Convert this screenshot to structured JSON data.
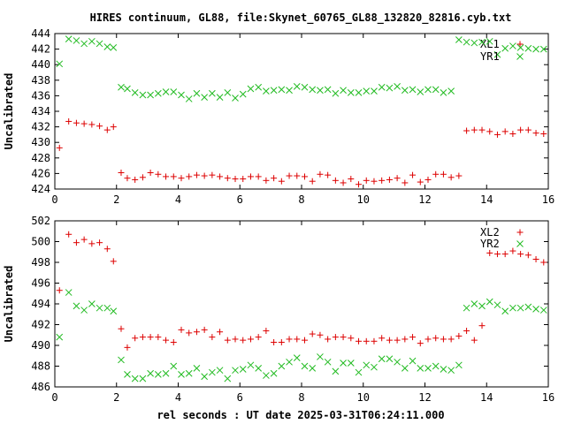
{
  "title": "HIRES continuum, GL88, file:Skynet_60765_GL88_132820_82816.cyb.txt",
  "xlabel": "rel seconds : UT date 2025-03-31T06:24:11.000",
  "colors": {
    "red": "#dd0000",
    "green": "#22bb22"
  },
  "chart_data": [
    {
      "type": "scatter",
      "ylabel": "Uncalibrated",
      "xlim": [
        0,
        16
      ],
      "ylim": [
        424,
        444
      ],
      "xticks": [
        0,
        2,
        4,
        6,
        8,
        10,
        12,
        14,
        16
      ],
      "yticks": [
        424,
        426,
        428,
        430,
        432,
        434,
        436,
        438,
        440,
        442,
        444
      ],
      "legend_position": "top-right",
      "series": [
        {
          "name": "XL1",
          "marker": "plus",
          "color": "#dd0000",
          "x": [
            0.15,
            0.45,
            0.7,
            0.95,
            1.2,
            1.45,
            1.7,
            1.9,
            2.15,
            2.35,
            2.6,
            2.85,
            3.1,
            3.35,
            3.6,
            3.85,
            4.1,
            4.35,
            4.6,
            4.85,
            5.1,
            5.35,
            5.6,
            5.85,
            6.1,
            6.35,
            6.6,
            6.85,
            7.1,
            7.35,
            7.6,
            7.85,
            8.1,
            8.35,
            8.6,
            8.85,
            9.1,
            9.35,
            9.6,
            9.85,
            10.1,
            10.35,
            10.6,
            10.85,
            11.1,
            11.35,
            11.6,
            11.85,
            12.1,
            12.35,
            12.6,
            12.85,
            13.1,
            13.35,
            13.6,
            13.85,
            14.1,
            14.35,
            14.6,
            14.85,
            15.1,
            15.35,
            15.6,
            15.85
          ],
          "values": [
            429.3,
            432.7,
            432.5,
            432.4,
            432.3,
            432.1,
            431.6,
            432.0,
            426.1,
            425.4,
            425.2,
            425.5,
            426.1,
            425.9,
            425.6,
            425.6,
            425.4,
            425.6,
            425.8,
            425.7,
            425.8,
            425.6,
            425.4,
            425.3,
            425.3,
            425.6,
            425.6,
            425.1,
            425.4,
            425.0,
            425.7,
            425.7,
            425.6,
            425.0,
            425.9,
            425.8,
            425.1,
            424.8,
            425.3,
            424.6,
            425.1,
            425.0,
            425.1,
            425.2,
            425.4,
            424.8,
            425.8,
            424.9,
            425.2,
            425.9,
            425.9,
            425.5,
            425.7,
            431.5,
            431.6,
            431.6,
            431.4,
            431.0,
            431.4,
            431.1,
            431.6,
            431.6,
            431.2,
            431.1
          ]
        },
        {
          "name": "YR1",
          "marker": "cross",
          "color": "#22bb22",
          "x": [
            0.15,
            0.45,
            0.7,
            0.95,
            1.2,
            1.45,
            1.7,
            1.9,
            2.15,
            2.35,
            2.6,
            2.85,
            3.1,
            3.35,
            3.6,
            3.85,
            4.1,
            4.35,
            4.6,
            4.85,
            5.1,
            5.35,
            5.6,
            5.85,
            6.1,
            6.35,
            6.6,
            6.85,
            7.1,
            7.35,
            7.6,
            7.85,
            8.1,
            8.35,
            8.6,
            8.85,
            9.1,
            9.35,
            9.6,
            9.85,
            10.1,
            10.35,
            10.6,
            10.85,
            11.1,
            11.35,
            11.6,
            11.85,
            12.1,
            12.35,
            12.6,
            12.85,
            13.1,
            13.35,
            13.6,
            13.85,
            14.1,
            14.35,
            14.6,
            14.85,
            15.1,
            15.35,
            15.6,
            15.85
          ],
          "values": [
            440.1,
            443.3,
            443.1,
            442.7,
            443.0,
            442.7,
            442.3,
            442.2,
            437.1,
            436.9,
            436.4,
            436.1,
            436.1,
            436.3,
            436.5,
            436.5,
            436.1,
            435.6,
            436.3,
            435.8,
            436.3,
            435.8,
            436.4,
            435.7,
            436.2,
            436.9,
            437.1,
            436.6,
            436.7,
            436.8,
            436.7,
            437.2,
            437.1,
            436.8,
            436.7,
            436.8,
            436.3,
            436.7,
            436.4,
            436.4,
            436.6,
            436.6,
            437.1,
            437.0,
            437.2,
            436.7,
            436.8,
            436.5,
            436.8,
            436.8,
            436.4,
            436.6,
            443.2,
            442.9,
            442.8,
            442.9,
            443.0,
            441.3,
            442.1,
            442.4,
            442.2,
            442.1,
            442.0,
            442.0
          ]
        }
      ]
    },
    {
      "type": "scatter",
      "ylabel": "Uncalibrated",
      "xlim": [
        0,
        16
      ],
      "ylim": [
        486,
        502
      ],
      "xticks": [
        0,
        2,
        4,
        6,
        8,
        10,
        12,
        14,
        16
      ],
      "yticks": [
        486,
        488,
        490,
        492,
        494,
        496,
        498,
        500,
        502
      ],
      "legend_position": "top-right",
      "series": [
        {
          "name": "XL2",
          "marker": "plus",
          "color": "#dd0000",
          "x": [
            0.15,
            0.45,
            0.7,
            0.95,
            1.2,
            1.45,
            1.7,
            1.9,
            2.15,
            2.35,
            2.6,
            2.85,
            3.1,
            3.35,
            3.6,
            3.85,
            4.1,
            4.35,
            4.6,
            4.85,
            5.1,
            5.35,
            5.6,
            5.85,
            6.1,
            6.35,
            6.6,
            6.85,
            7.1,
            7.35,
            7.6,
            7.85,
            8.1,
            8.35,
            8.6,
            8.85,
            9.1,
            9.35,
            9.6,
            9.85,
            10.1,
            10.35,
            10.6,
            10.85,
            11.1,
            11.35,
            11.6,
            11.85,
            12.1,
            12.35,
            12.6,
            12.85,
            13.1,
            13.35,
            13.6,
            13.85,
            14.1,
            14.35,
            14.6,
            14.85,
            15.1,
            15.35,
            15.6,
            15.85
          ],
          "values": [
            495.3,
            500.7,
            499.9,
            500.2,
            499.8,
            499.9,
            499.3,
            498.1,
            491.6,
            489.8,
            490.7,
            490.8,
            490.8,
            490.8,
            490.5,
            490.3,
            491.5,
            491.2,
            491.3,
            491.5,
            490.8,
            491.3,
            490.5,
            490.6,
            490.5,
            490.6,
            490.8,
            491.4,
            490.3,
            490.3,
            490.6,
            490.6,
            490.5,
            491.1,
            491.0,
            490.6,
            490.8,
            490.8,
            490.7,
            490.4,
            490.4,
            490.4,
            490.7,
            490.5,
            490.5,
            490.6,
            490.8,
            490.2,
            490.6,
            490.7,
            490.6,
            490.6,
            490.9,
            491.4,
            490.5,
            491.9,
            498.9,
            498.8,
            498.8,
            499.1,
            498.8,
            498.7,
            498.3,
            498.0
          ]
        },
        {
          "name": "YR2",
          "marker": "cross",
          "color": "#22bb22",
          "x": [
            0.15,
            0.45,
            0.7,
            0.95,
            1.2,
            1.45,
            1.7,
            1.9,
            2.15,
            2.35,
            2.6,
            2.85,
            3.1,
            3.35,
            3.6,
            3.85,
            4.1,
            4.35,
            4.6,
            4.85,
            5.1,
            5.35,
            5.6,
            5.85,
            6.1,
            6.35,
            6.6,
            6.85,
            7.1,
            7.35,
            7.6,
            7.85,
            8.1,
            8.35,
            8.6,
            8.85,
            9.1,
            9.35,
            9.6,
            9.85,
            10.1,
            10.35,
            10.6,
            10.85,
            11.1,
            11.35,
            11.6,
            11.85,
            12.1,
            12.35,
            12.6,
            12.85,
            13.1,
            13.35,
            13.6,
            13.85,
            14.1,
            14.35,
            14.6,
            14.85,
            15.1,
            15.35,
            15.6,
            15.85
          ],
          "values": [
            490.8,
            495.1,
            493.8,
            493.4,
            494.0,
            493.6,
            493.6,
            493.3,
            488.6,
            487.2,
            486.8,
            486.8,
            487.3,
            487.2,
            487.3,
            488.0,
            487.2,
            487.3,
            487.8,
            487.0,
            487.4,
            487.6,
            486.8,
            487.6,
            487.7,
            488.1,
            487.8,
            487.1,
            487.3,
            488.0,
            488.4,
            488.8,
            488.0,
            487.8,
            488.9,
            488.4,
            487.5,
            488.3,
            488.3,
            487.4,
            488.1,
            487.9,
            488.7,
            488.7,
            488.4,
            487.8,
            488.5,
            487.8,
            487.8,
            488.0,
            487.7,
            487.6,
            488.1,
            493.6,
            494.0,
            493.8,
            494.2,
            493.9,
            493.3,
            493.6,
            493.6,
            493.7,
            493.5,
            493.4
          ]
        }
      ]
    }
  ]
}
